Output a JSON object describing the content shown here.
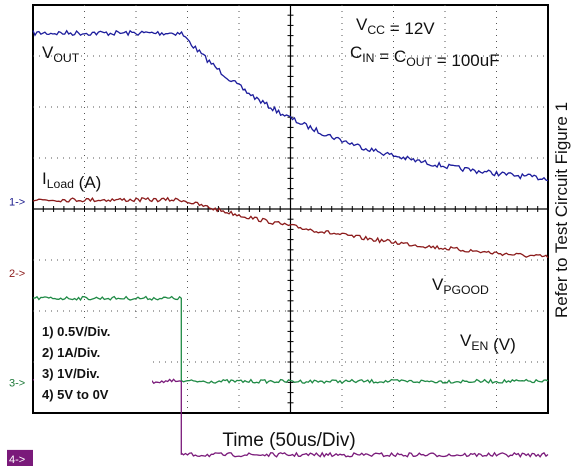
{
  "chart_data": {
    "type": "line",
    "xlabel": "Time (50us/Div)",
    "side_note": "Refer to Test Circuit Figure 1",
    "conditions": {
      "vcc": {
        "main": "V",
        "sub": "CC",
        "rest": " = 12V"
      },
      "caps": [
        {
          "t": "C",
          "s": false
        },
        {
          "t": "IN",
          "s": true
        },
        {
          "t": " = C",
          "s": false
        },
        {
          "t": "OUT",
          "s": true
        },
        {
          "t": " = 100uF",
          "s": false
        }
      ]
    },
    "x_divisions": 10,
    "x_unit_per_div": "50us",
    "y_divisions": 8,
    "markers": [
      {
        "label": "1->",
        "color": "#1a1a8c",
        "boxed": false,
        "div_from_top": 3.85
      },
      {
        "label": "2->",
        "color": "#8b1a1a",
        "boxed": false,
        "div_from_top": 5.25
      },
      {
        "label": "3->",
        "color": "#1f7a3a",
        "boxed": false,
        "div_from_top": 7.4
      },
      {
        "label": "4->",
        "color": "#ffffff",
        "bg": "#7a1a7a",
        "boxed": true,
        "div_from_top": 8.9
      }
    ],
    "scales": [
      "1)  0.5V/Div.",
      "2)  1A/Div.",
      "3)  1V/Div.",
      "4)  5V to 0V"
    ],
    "series": [
      {
        "name_parts": [
          {
            "t": "V",
            "s": false
          },
          {
            "t": "OUT",
            "s": true
          }
        ],
        "color": "#1c1c9c",
        "pre_level_div": 0.55,
        "fall_start_div": 2.88,
        "final_level_div": 3.62,
        "decay_tau_div": 2.7,
        "noise_div": 0.05
      },
      {
        "name_parts": [
          {
            "t": "I",
            "s": false
          },
          {
            "t": "Load",
            "s": true
          },
          {
            "t": " (A)",
            "s": false
          }
        ],
        "color": "#8b1a1a",
        "pre_level_div": 3.82,
        "fall_start_div": 2.88,
        "final_level_div": 5.3,
        "decay_tau_div": 5.0,
        "noise_div": 0.04
      },
      {
        "name_parts": [
          {
            "t": "V",
            "s": false
          },
          {
            "t": "PGOOD",
            "s": true
          }
        ],
        "color": "#1f8a45",
        "pre_level_div": 5.75,
        "fall_start_div": 2.88,
        "final_level_div": 7.38,
        "decay_tau_div": 0,
        "noise_div": 0.035
      },
      {
        "name_parts": [
          {
            "t": "V",
            "s": false
          },
          {
            "t": "EN",
            "s": true
          },
          {
            "t": "  (V)",
            "s": false
          }
        ],
        "color": "#7a1a7a",
        "pre_level_div": 7.38,
        "fall_start_div": 2.88,
        "final_level_div": 8.82,
        "decay_tau_div": 0,
        "noise_div": 0.04
      }
    ]
  }
}
